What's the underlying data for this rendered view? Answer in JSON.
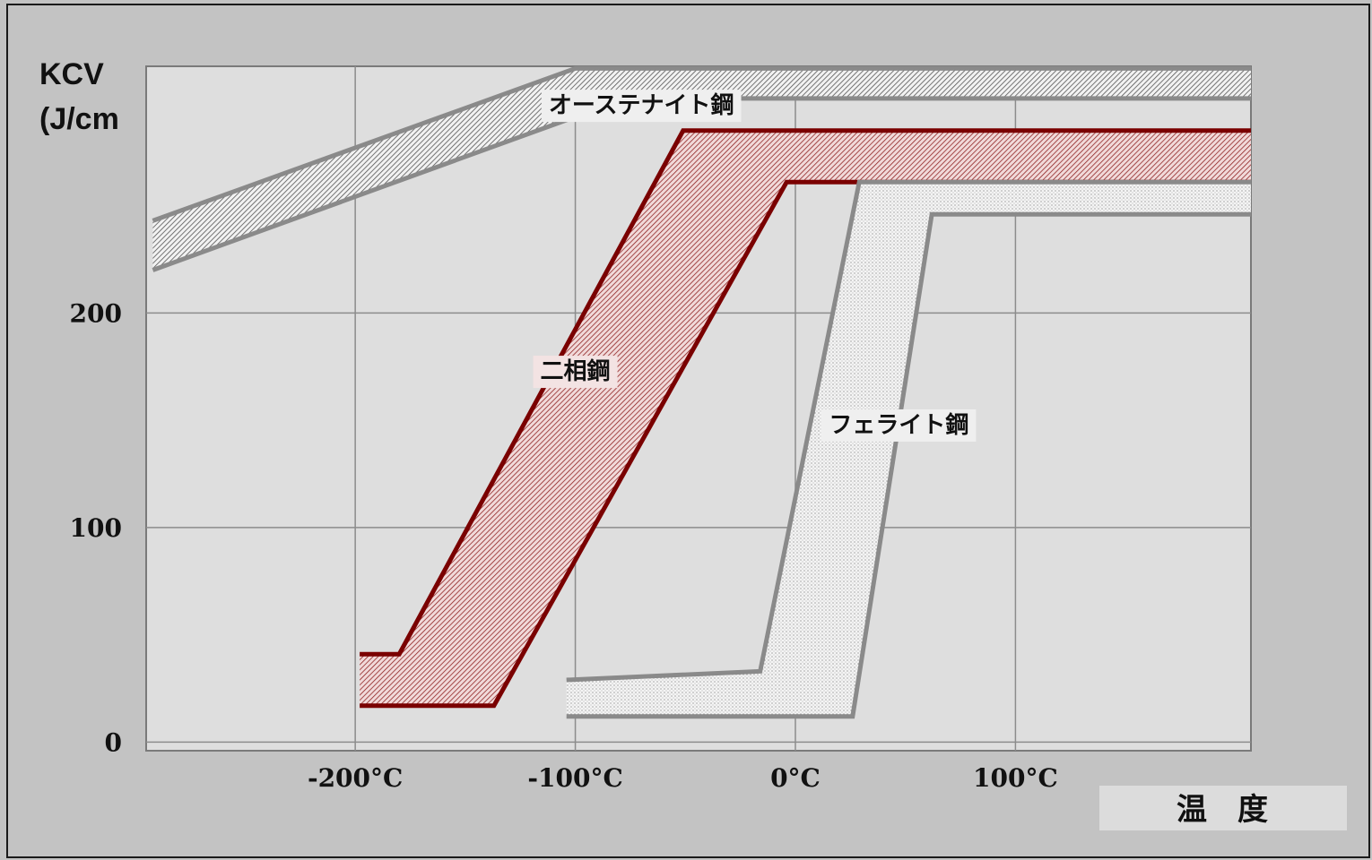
{
  "chart_data": {
    "type": "area",
    "ylabel_line1": "KCV",
    "ylabel_line2": "(J/cm",
    "xlabel": "温　度",
    "x_ticks": [
      {
        "value": -200,
        "label": "-200°C"
      },
      {
        "value": -100,
        "label": "-100°C"
      },
      {
        "value": 0,
        "label": "0°C"
      },
      {
        "value": 100,
        "label": "100°C"
      }
    ],
    "y_ticks": [
      {
        "value": 0,
        "label": "0"
      },
      {
        "value": 100,
        "label": "100"
      },
      {
        "value": 200,
        "label": "200"
      }
    ],
    "xlim": [
      -295,
      207
    ],
    "ylim": [
      -4,
      315
    ],
    "grid": true,
    "series": [
      {
        "name": "オーステナイト鋼",
        "color": "#8a8a8a",
        "fill": "hatch-dense",
        "label_at": [
          -70,
          297
        ],
        "upper": [
          [
            -292,
            243
          ],
          [
            -100,
            314
          ],
          [
            207,
            314
          ]
        ],
        "lower": [
          [
            -292,
            220
          ],
          [
            -77,
            300
          ],
          [
            207,
            300
          ]
        ]
      },
      {
        "name": "二相鋼",
        "color": "#7a0000",
        "fill": "hatch-red",
        "label_at": [
          -100,
          173
        ],
        "upper": [
          [
            -198,
            41
          ],
          [
            -180,
            41
          ],
          [
            -51,
            285
          ],
          [
            207,
            285
          ]
        ],
        "lower": [
          [
            -198,
            17
          ],
          [
            -137,
            17
          ],
          [
            -4,
            261
          ],
          [
            207,
            261
          ]
        ]
      },
      {
        "name": "フェライト鋼",
        "color": "#8a8a8a",
        "fill": "dots",
        "label_at": [
          47,
          148
        ],
        "upper": [
          [
            -104,
            29
          ],
          [
            -16,
            33
          ],
          [
            29,
            261
          ],
          [
            207,
            261
          ]
        ],
        "lower": [
          [
            -104,
            12
          ],
          [
            26,
            12
          ],
          [
            62,
            246
          ],
          [
            207,
            246
          ]
        ]
      }
    ]
  }
}
